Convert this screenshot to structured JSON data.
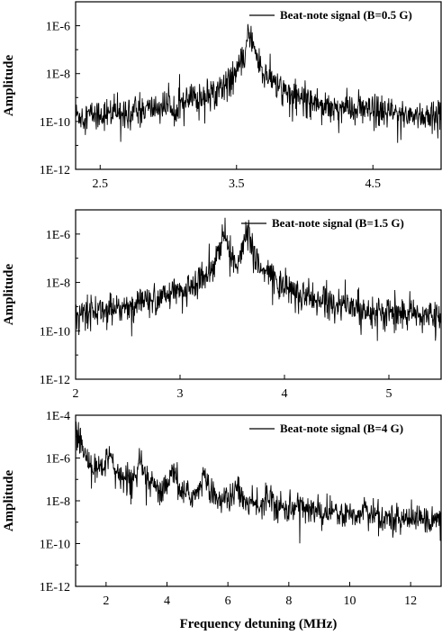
{
  "colors": {
    "trace": "#000000",
    "axes": "#000000",
    "background": "#ffffff"
  },
  "chart_data": [
    {
      "type": "line",
      "xlabel": "",
      "ylabel": "Amplitude",
      "yscale": "log",
      "xlim": [
        2.32,
        5.0
      ],
      "ylim": [
        1e-12,
        1e-05
      ],
      "xticks": [
        2.5,
        3.5,
        4.5
      ],
      "xtick_labels": [
        "2.5",
        "3.5",
        "4.5"
      ],
      "yticks": [
        1e-12,
        1e-10,
        1e-08,
        1e-06
      ],
      "ytick_labels": [
        "1E-12",
        "1E-10",
        "1E-8",
        "1E-6"
      ],
      "legend": {
        "label": "Beat-note signal (B=0.5 G)",
        "placement": "top-right"
      },
      "series": [
        {
          "name": "Beat-note signal (B=0.5 G)",
          "noise_floor": 1e-10,
          "peaks": [
            {
              "x": 3.6,
              "y": 5e-07
            }
          ]
        }
      ]
    },
    {
      "type": "line",
      "xlabel": "",
      "ylabel": "Amplitude",
      "yscale": "log",
      "xlim": [
        2.0,
        5.5
      ],
      "ylim": [
        1e-12,
        1e-05
      ],
      "xticks": [
        2,
        3,
        4,
        5
      ],
      "xtick_labels": [
        "2",
        "3",
        "4",
        "5"
      ],
      "yticks": [
        1e-12,
        1e-10,
        1e-08,
        1e-06
      ],
      "ytick_labels": [
        "1E-12",
        "1E-10",
        "1E-8",
        "1E-6"
      ],
      "legend": {
        "label": "Beat-note signal (B=1.5 G)",
        "placement": "top-right"
      },
      "series": [
        {
          "name": "Beat-note signal (B=1.5 G)",
          "noise_floor": 1e-10,
          "peaks": [
            {
              "x": 3.42,
              "y": 1.2e-06
            },
            {
              "x": 3.65,
              "y": 1.2e-06
            },
            {
              "x": 3.88,
              "y": 1e-08
            },
            {
              "x": 4.12,
              "y": 1.5e-09
            },
            {
              "x": 4.35,
              "y": 4e-10
            }
          ]
        }
      ]
    },
    {
      "type": "line",
      "xlabel": "Frequency detuning (MHz)",
      "ylabel": "Amplitude",
      "yscale": "log",
      "xlim": [
        1.0,
        13.0
      ],
      "ylim": [
        1e-12,
        0.0001
      ],
      "xticks": [
        2,
        4,
        6,
        8,
        10,
        12
      ],
      "xtick_labels": [
        "2",
        "4",
        "6",
        "8",
        "10",
        "12"
      ],
      "yticks": [
        1e-12,
        1e-10,
        1e-08,
        1e-06,
        0.0001
      ],
      "ytick_labels": [
        "1E-12",
        "1E-10",
        "1E-8",
        "1E-6",
        "1E-4"
      ],
      "legend": {
        "label": "Beat-note signal (B=4 G)",
        "placement": "top-right"
      },
      "series": [
        {
          "name": "Beat-note signal (B=4 G)",
          "noise_floor": 1e-10,
          "peaks": [
            {
              "x": 1.0,
              "y": 3e-05
            },
            {
              "x": 2.1,
              "y": 1.5e-06
            },
            {
              "x": 3.15,
              "y": 5e-07
            },
            {
              "x": 4.2,
              "y": 2e-07
            },
            {
              "x": 5.25,
              "y": 1.5e-07
            },
            {
              "x": 6.3,
              "y": 5e-08
            },
            {
              "x": 7.35,
              "y": 2e-08
            },
            {
              "x": 8.4,
              "y": 5e-09
            },
            {
              "x": 9.45,
              "y": 1e-09
            },
            {
              "x": 10.5,
              "y": 3e-09
            }
          ]
        }
      ]
    }
  ]
}
